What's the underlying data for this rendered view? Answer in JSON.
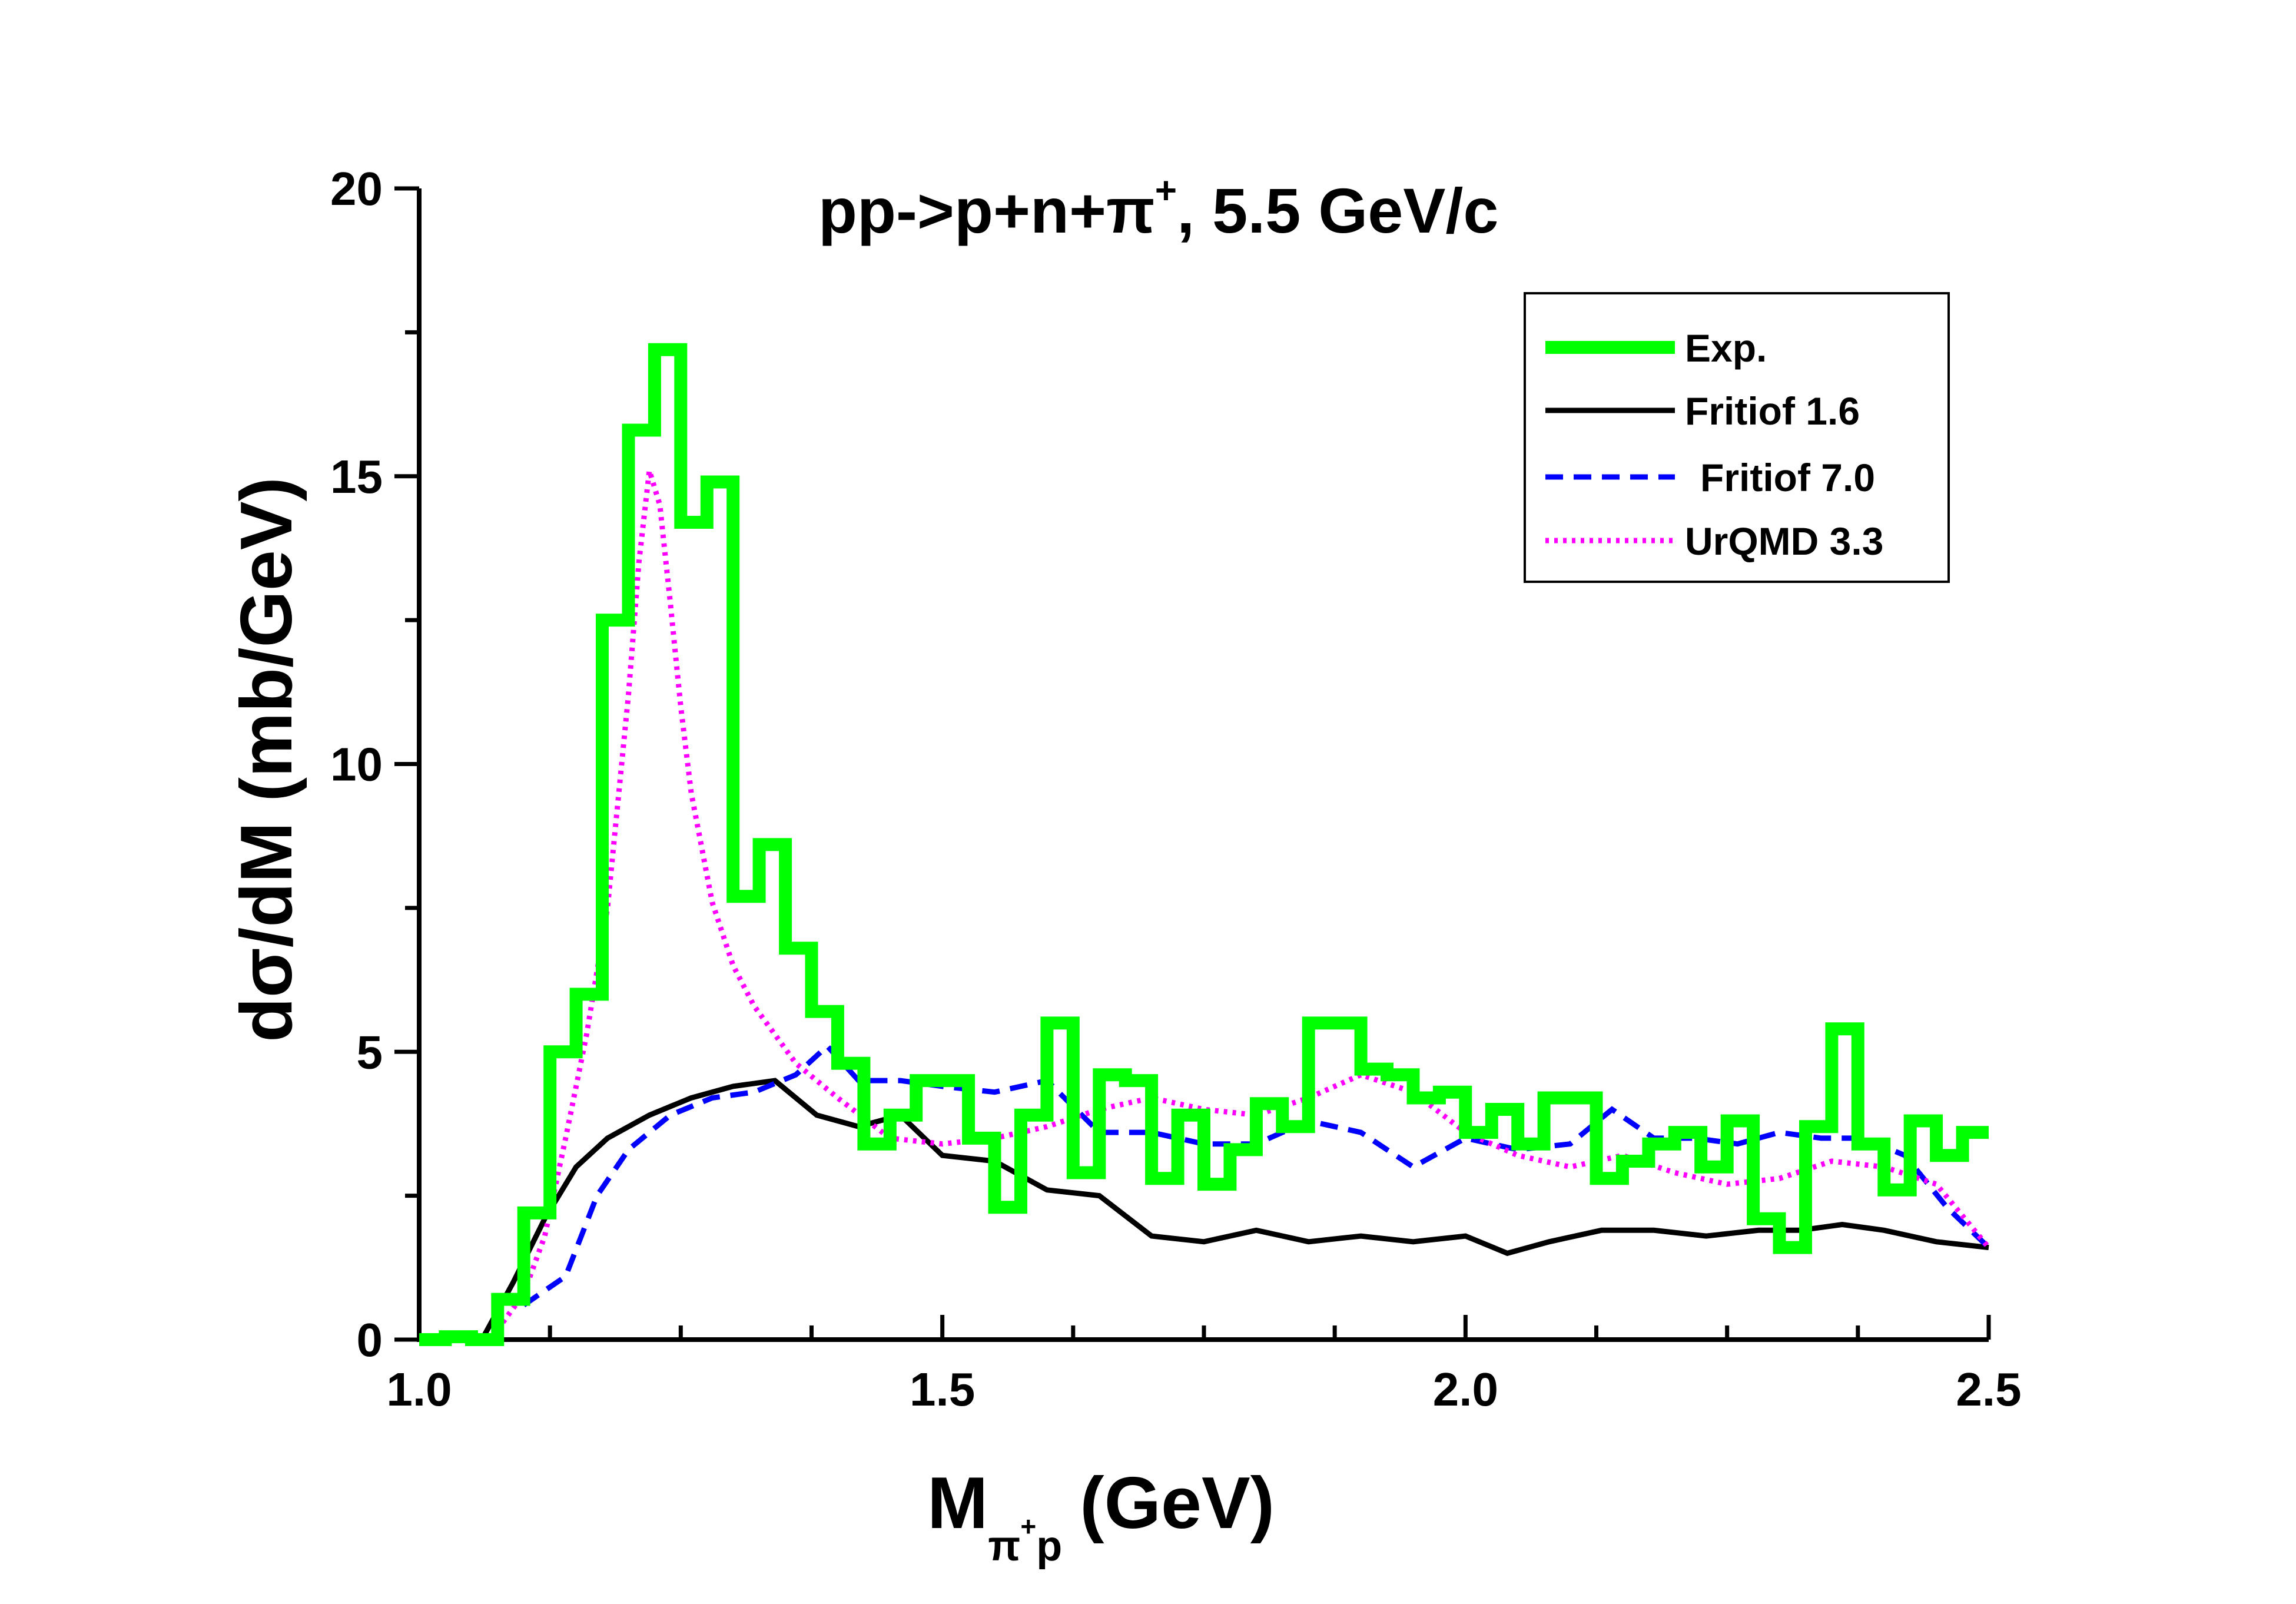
{
  "chart_data": {
    "type": "line",
    "title": "pp->p+n+π⁺, 5.5 GeV/c",
    "title_parts": {
      "prefix": "pp->p+n+π",
      "sup": "+",
      "suffix": ", 5.5 GeV/c"
    },
    "xlabel": "M(π⁺p) (GeV)",
    "xlabel_parts": {
      "main": "M",
      "sub": "π",
      "sub_sup": "+",
      "sub_tail": "p",
      "units": "(GeV)"
    },
    "ylabel": "dσ/dM (mb/GeV)",
    "xlim": [
      1.0,
      2.5
    ],
    "ylim": [
      0,
      20
    ],
    "xticks": [
      "1.0",
      "1.5",
      "2.0",
      "2.5"
    ],
    "yticks": [
      "0",
      "5",
      "10",
      "15",
      "20"
    ],
    "grid": false,
    "legend_position": "top-right",
    "series": [
      {
        "name": "Exp.",
        "style": "step",
        "color": "#00ff00",
        "bin_width": 0.025,
        "bin_start": 1.0,
        "values": [
          0,
          0.05,
          0,
          0.7,
          2.2,
          5.0,
          6.0,
          12.5,
          15.8,
          17.2,
          14.2,
          14.9,
          7.7,
          8.6,
          6.8,
          5.7,
          4.8,
          3.4,
          3.9,
          4.5,
          4.5,
          3.5,
          2.3,
          3.9,
          5.5,
          2.9,
          4.6,
          4.5,
          2.8,
          3.9,
          2.7,
          3.3,
          4.1,
          3.7,
          5.5,
          5.5,
          4.7,
          4.6,
          4.2,
          4.3,
          3.6,
          4.0,
          3.4,
          4.2,
          4.2,
          2.8,
          3.1,
          3.4,
          3.6,
          3.0,
          3.8,
          2.1,
          1.6,
          3.7,
          5.4,
          3.4,
          2.6,
          3.8,
          3.2,
          3.6
        ]
      },
      {
        "name": "Fritiof 1.6",
        "style": "solid",
        "color": "#000000",
        "x": [
          1.06,
          1.09,
          1.12,
          1.15,
          1.18,
          1.22,
          1.26,
          1.3,
          1.34,
          1.38,
          1.42,
          1.46,
          1.5,
          1.55,
          1.6,
          1.65,
          1.7,
          1.75,
          1.8,
          1.85,
          1.9,
          1.95,
          2.0,
          2.04,
          2.08,
          2.13,
          2.18,
          2.23,
          2.28,
          2.32,
          2.36,
          2.4,
          2.45,
          2.5
        ],
        "y": [
          0,
          1.0,
          2.1,
          3.0,
          3.5,
          3.9,
          4.2,
          4.4,
          4.5,
          3.9,
          3.7,
          3.9,
          3.2,
          3.1,
          2.6,
          2.5,
          1.8,
          1.7,
          1.9,
          1.7,
          1.8,
          1.7,
          1.8,
          1.5,
          1.7,
          1.9,
          1.9,
          1.8,
          1.9,
          1.9,
          2.0,
          1.9,
          1.7,
          1.6
        ]
      },
      {
        "name": "Fritiof 7.0",
        "style": "dashed",
        "color": "#0000ff",
        "x": [
          1.1,
          1.14,
          1.17,
          1.2,
          1.24,
          1.28,
          1.32,
          1.36,
          1.39,
          1.42,
          1.46,
          1.5,
          1.55,
          1.6,
          1.65,
          1.7,
          1.75,
          1.8,
          1.85,
          1.9,
          1.95,
          2.0,
          2.05,
          2.1,
          2.14,
          2.18,
          2.22,
          2.26,
          2.3,
          2.34,
          2.38,
          2.42,
          2.46,
          2.5
        ],
        "y": [
          0.6,
          1.1,
          2.5,
          3.3,
          3.9,
          4.2,
          4.3,
          4.6,
          5.1,
          4.5,
          4.5,
          4.4,
          4.3,
          4.5,
          3.6,
          3.6,
          3.4,
          3.4,
          3.8,
          3.6,
          3.0,
          3.5,
          3.3,
          3.4,
          4.0,
          3.5,
          3.5,
          3.4,
          3.6,
          3.5,
          3.5,
          3.2,
          2.3,
          1.6
        ]
      },
      {
        "name": "UrQMD 3.3",
        "style": "dotted",
        "color": "#ff00ff",
        "x": [
          1.08,
          1.1,
          1.12,
          1.14,
          1.16,
          1.18,
          1.2,
          1.21,
          1.22,
          1.23,
          1.24,
          1.25,
          1.26,
          1.28,
          1.3,
          1.32,
          1.34,
          1.36,
          1.4,
          1.45,
          1.5,
          1.55,
          1.6,
          1.65,
          1.7,
          1.75,
          1.8,
          1.85,
          1.9,
          1.95,
          2.0,
          2.05,
          2.1,
          2.15,
          2.2,
          2.25,
          2.3,
          2.35,
          2.4,
          2.45,
          2.5
        ],
        "y": [
          0.3,
          0.8,
          1.8,
          3.5,
          5.3,
          7.5,
          11.2,
          13.5,
          15.1,
          14.5,
          12.8,
          11.0,
          9.5,
          7.6,
          6.5,
          5.8,
          5.3,
          4.8,
          4.2,
          3.5,
          3.4,
          3.5,
          3.7,
          4.0,
          4.2,
          4.0,
          3.9,
          4.2,
          4.6,
          4.3,
          3.6,
          3.2,
          3.0,
          3.2,
          2.9,
          2.7,
          2.8,
          3.1,
          3.0,
          2.7,
          1.6
        ]
      }
    ]
  }
}
